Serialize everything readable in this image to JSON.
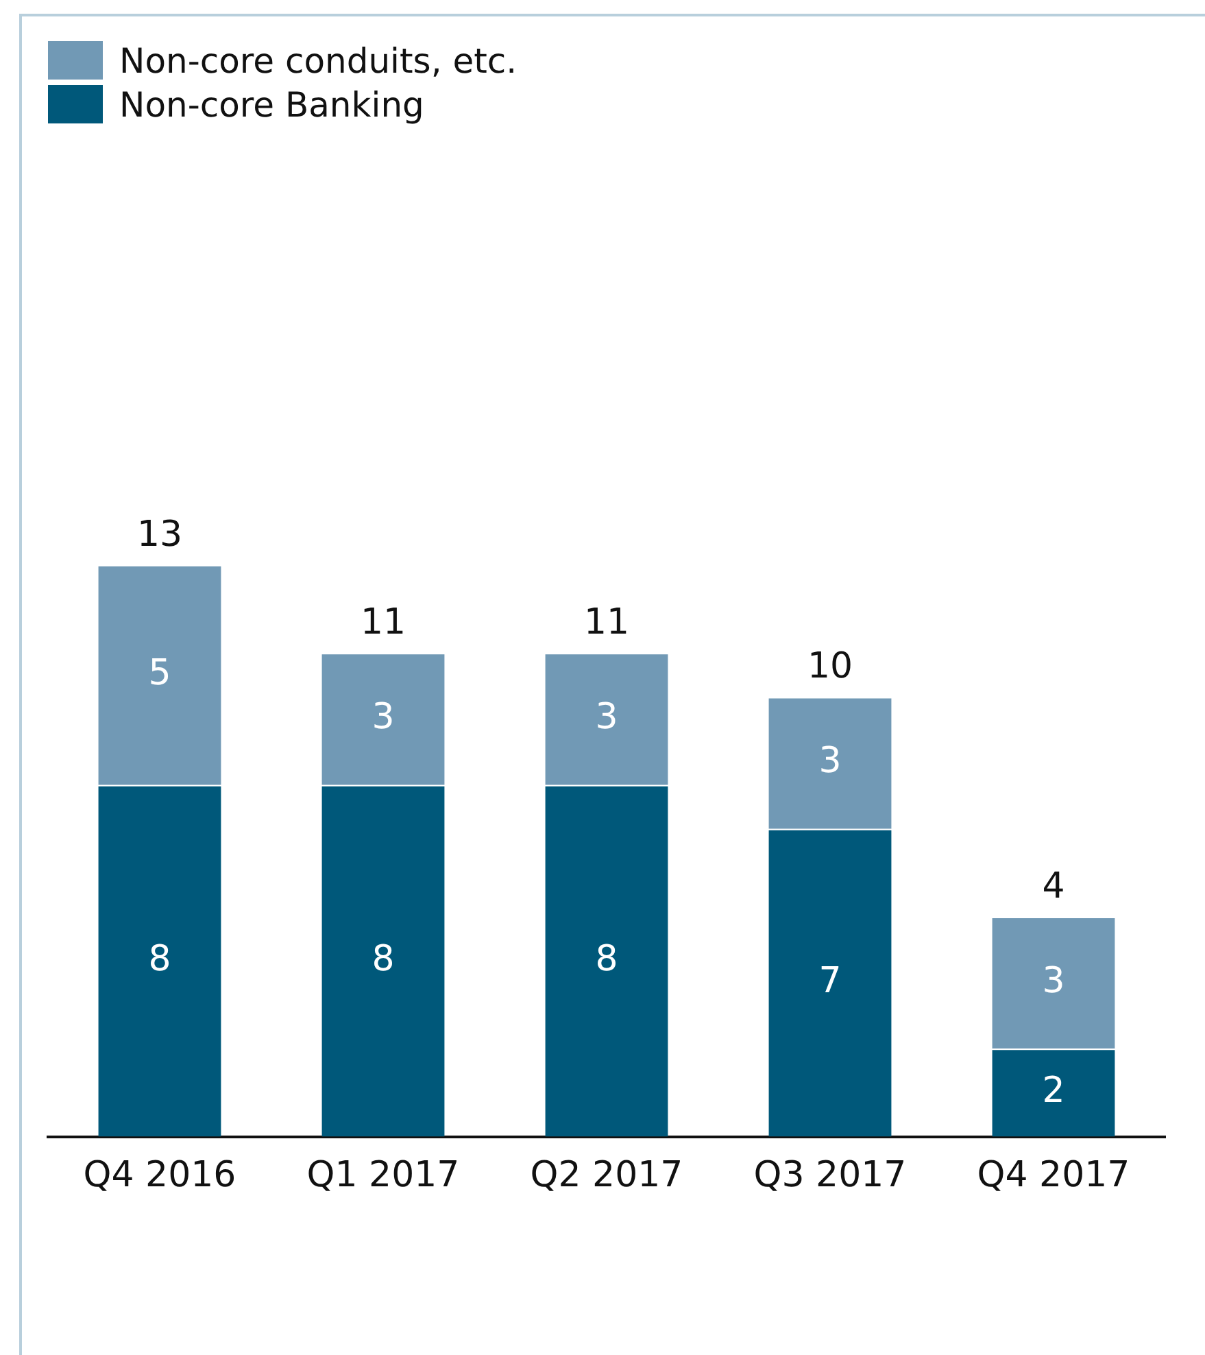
{
  "chart_data": {
    "type": "bar",
    "stacked": true,
    "categories": [
      "Q4 2016",
      "Q1 2017",
      "Q2 2017",
      "Q3 2017",
      "Q4 2017"
    ],
    "series": [
      {
        "name": "Non-core Banking",
        "color": "#00587a",
        "values": [
          8,
          8,
          8,
          7,
          2
        ]
      },
      {
        "name": "Non-core conduits, etc.",
        "color": "#7199b5",
        "values": [
          5,
          3,
          3,
          3,
          3
        ]
      }
    ],
    "data_labels": true,
    "totals": [
      "13",
      "11",
      "11",
      "10",
      "4"
    ],
    "legend": "top left",
    "grid": false
  }
}
